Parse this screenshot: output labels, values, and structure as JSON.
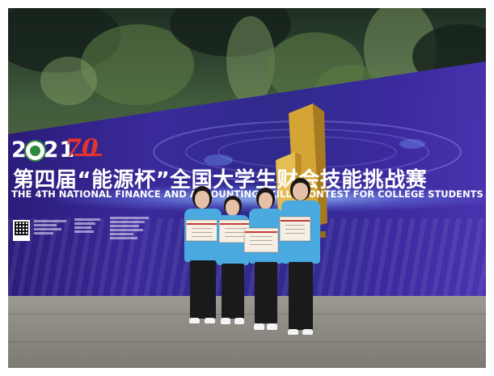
{
  "scene": {
    "description": "",
    "colors": {
      "banner": "#3a2a9a",
      "uniform": "#4aa9df",
      "anniversary_logo": "#e3342f",
      "foliage": "#2e4330",
      "pavement": "#918f87"
    }
  },
  "banner": {
    "year": "2021",
    "anniversary": "70",
    "title_cn": "第四届“能源杯”全国大学生财会技能挑战赛",
    "title_en": "THE 4TH NATIONAL FINANCE AND ACCOUNTING SKILLS CONTEST FOR COLLEGE STUDENTS"
  },
  "icons": {
    "seal": "school-seal-icon",
    "qr": "qr-code-icon",
    "trophy": "trophy-sculpture-icon"
  }
}
